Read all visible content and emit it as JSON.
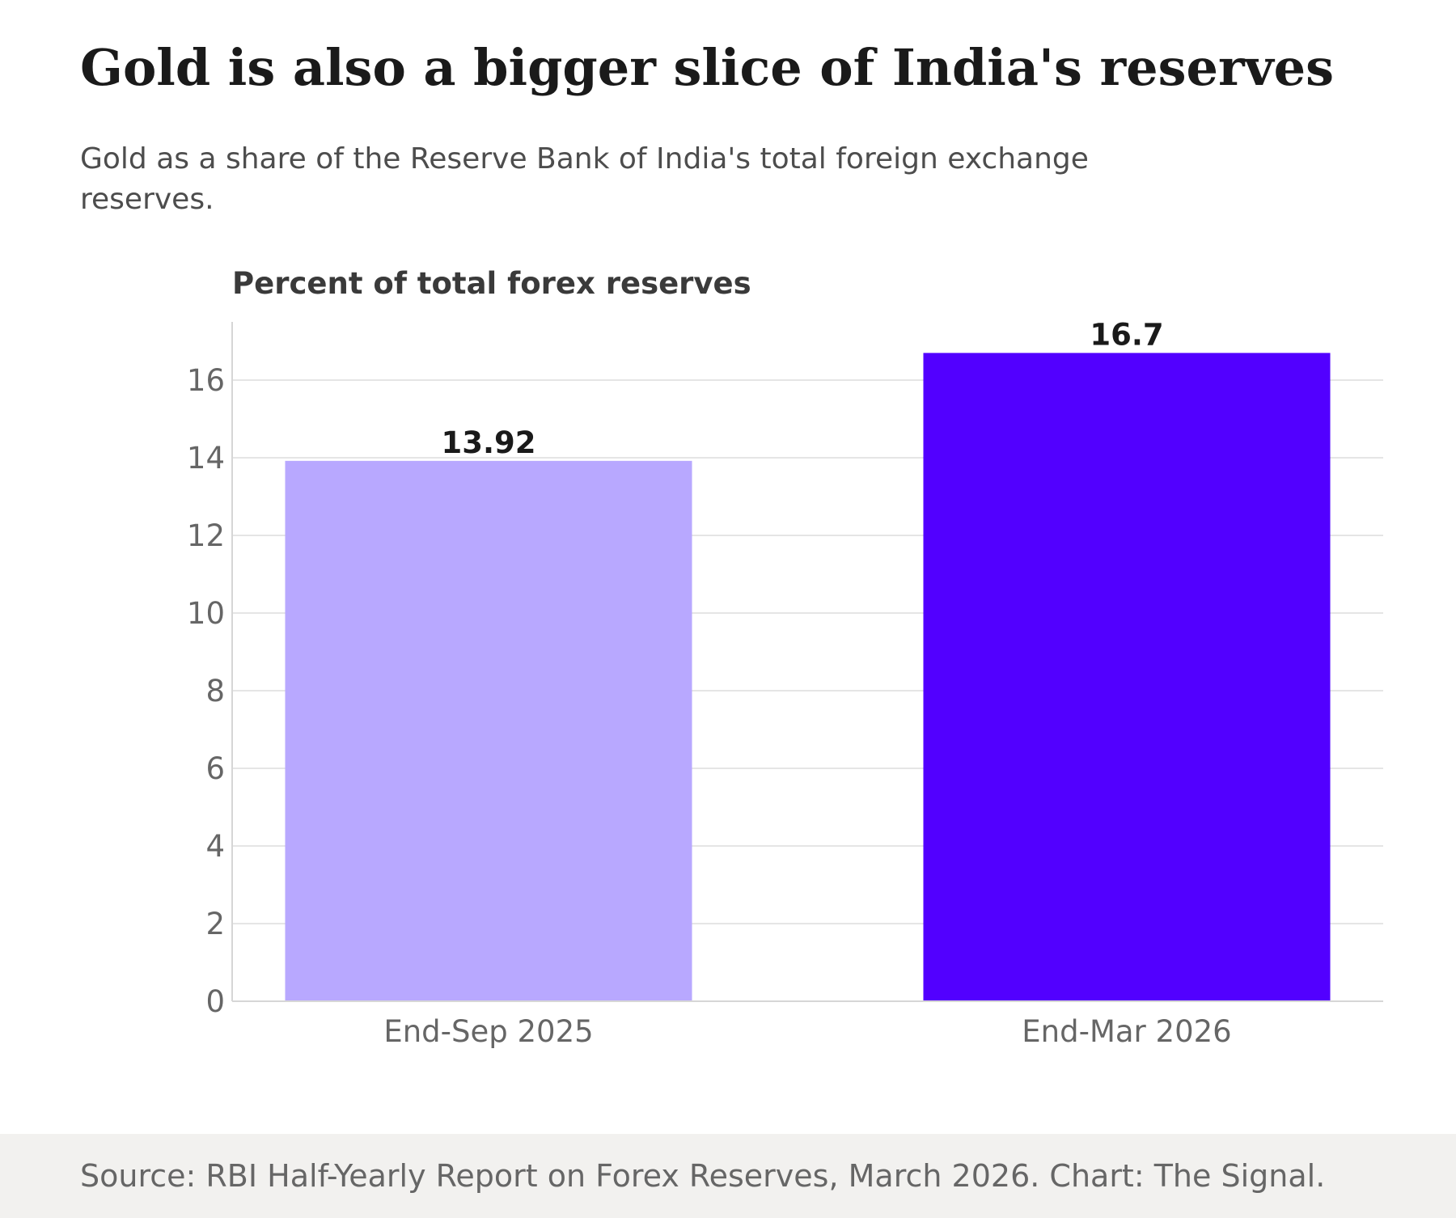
{
  "header": {
    "title": "Gold is also a bigger slice of India's reserves",
    "subtitle": "Gold as a share of the Reserve Bank of India's total foreign exchange reserves."
  },
  "chart_data": {
    "type": "bar",
    "title": "Percent of total forex reserves",
    "xlabel": "",
    "ylabel": "",
    "categories": [
      "End-Sep 2025",
      "End-Mar 2026"
    ],
    "values": [
      13.92,
      16.7
    ],
    "value_labels": [
      "13.92",
      "16.7"
    ],
    "bar_colors": [
      "#b8a8ff",
      "#5200ff"
    ],
    "ylim": [
      0,
      17.5
    ],
    "yticks": [
      0,
      2,
      4,
      6,
      8,
      10,
      12,
      14,
      16
    ],
    "ytick_labels": [
      "0",
      "2",
      "4",
      "6",
      "8",
      "10",
      "12",
      "14",
      "16"
    ],
    "grid": true,
    "colors": {
      "grid": "#e5e5e5",
      "axis": "#d6d6d6",
      "tick_text": "#666666",
      "value_text": "#1a1a1a",
      "axis_title": "#3a3a3a"
    }
  },
  "footer": {
    "source": "Source: RBI Half-Yearly Report on Forex Reserves, March 2026. Chart: The Signal."
  }
}
